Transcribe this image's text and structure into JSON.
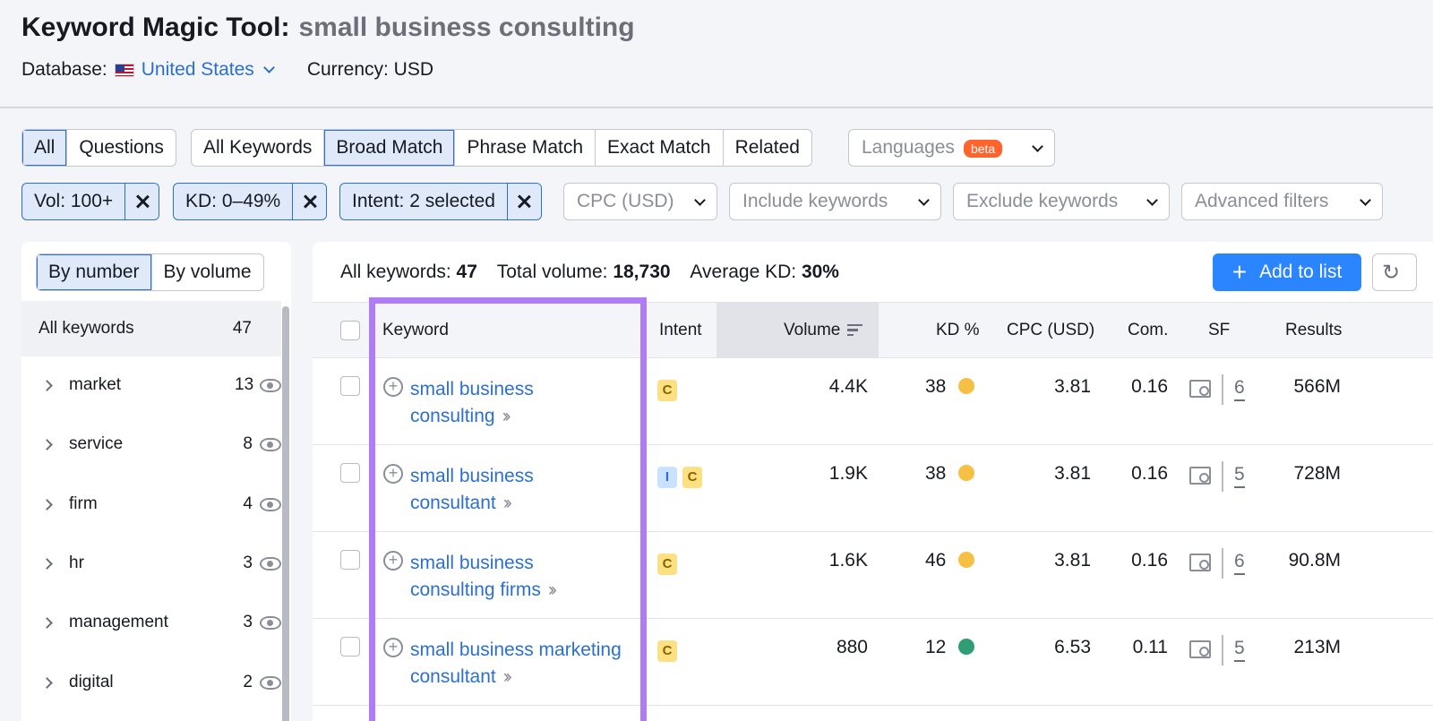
{
  "header": {
    "tool_title": "Keyword Magic Tool:",
    "query": "small business consulting",
    "database_label": "Database:",
    "database_value": "United States",
    "currency": "Currency: USD"
  },
  "match_tabs": {
    "group1": [
      "All",
      "Questions"
    ],
    "group1_selected": "All",
    "group2": [
      "All Keywords",
      "Broad Match",
      "Phrase Match",
      "Exact Match",
      "Related"
    ],
    "group2_selected": "Broad Match",
    "languages": "Languages",
    "beta": "beta"
  },
  "filters": {
    "active": [
      "Vol: 100+",
      "KD: 0–49%",
      "Intent: 2 selected"
    ],
    "dropdowns": [
      "CPC (USD)",
      "Include keywords",
      "Exclude keywords",
      "Advanced filters"
    ]
  },
  "sidebar": {
    "toggle": [
      "By number",
      "By volume"
    ],
    "toggle_selected": "By number",
    "all_label": "All keywords",
    "all_count": "47",
    "groups": [
      {
        "label": "market",
        "count": "13"
      },
      {
        "label": "service",
        "count": "8"
      },
      {
        "label": "firm",
        "count": "4"
      },
      {
        "label": "hr",
        "count": "3"
      },
      {
        "label": "management",
        "count": "3"
      },
      {
        "label": "digital",
        "count": "2"
      }
    ]
  },
  "summary": {
    "all_keywords_label": "All keywords:",
    "all_keywords_value": "47",
    "total_volume_label": "Total volume:",
    "total_volume_value": "18,730",
    "avg_kd_label": "Average KD:",
    "avg_kd_value": "30%",
    "add_to_list": "Add to list"
  },
  "table": {
    "columns": [
      "Keyword",
      "Intent",
      "Volume",
      "KD %",
      "CPC (USD)",
      "Com.",
      "SF",
      "Results"
    ],
    "rows": [
      {
        "keyword_line1": "small business",
        "keyword_line2": "consulting",
        "intent": [
          "C"
        ],
        "volume": "4.4K",
        "kd": "38",
        "kd_color": "#f5c044",
        "cpc": "3.81",
        "com": "0.16",
        "sf": "6",
        "results": "566M"
      },
      {
        "keyword_line1": "small business",
        "keyword_line2": "consultant",
        "intent": [
          "I",
          "C"
        ],
        "volume": "1.9K",
        "kd": "38",
        "kd_color": "#f5c044",
        "cpc": "3.81",
        "com": "0.16",
        "sf": "5",
        "results": "728M"
      },
      {
        "keyword_line1": "small business",
        "keyword_line2": "consulting firms",
        "intent": [
          "C"
        ],
        "volume": "1.6K",
        "kd": "46",
        "kd_color": "#f5c044",
        "cpc": "3.81",
        "com": "0.16",
        "sf": "6",
        "results": "90.8M"
      },
      {
        "keyword_line1": "small business marketing",
        "keyword_line2": "consultant",
        "intent": [
          "C"
        ],
        "volume": "880",
        "kd": "12",
        "kd_color": "#2e9e74",
        "cpc": "6.53",
        "com": "0.11",
        "sf": "5",
        "results": "213M"
      }
    ]
  },
  "colors": {
    "accent": "#2b6fd1",
    "primary_button": "#2b85ff",
    "highlight_box": "#b07cf5"
  }
}
